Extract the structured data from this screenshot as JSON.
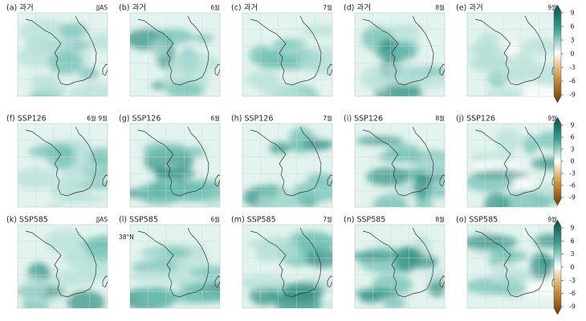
{
  "panels": [
    {
      "label": "(a) 과거",
      "period": "JJAS"
    },
    {
      "label": "(b) 과거",
      "period": "6월"
    },
    {
      "label": "(c) 과거",
      "period": "7월"
    },
    {
      "label": "(d) 과거",
      "period": "8월"
    },
    {
      "label": "(e) 과거",
      "period": "9월"
    },
    {
      "label": "(f) SSP126",
      "period": "6월 9월"
    },
    {
      "label": "(g) SSP126",
      "period": "6월"
    },
    {
      "label": "(h) SSP126",
      "period": "7월"
    },
    {
      "label": "(i) SSP126",
      "period": "8월"
    },
    {
      "label": "(j) SSP126",
      "period": "9월"
    },
    {
      "label": "(k) SSP585",
      "period": "JJAS"
    },
    {
      "label": "(l) SSP585",
      "period": "6월",
      "note": "38°N"
    },
    {
      "label": "(m) SSP585",
      "period": "7월"
    },
    {
      "label": "(n) SSP585",
      "period": "8월"
    },
    {
      "label": "(o) SSP585",
      "period": "9월"
    }
  ],
  "colorbars": [
    {
      "ticks": [
        9,
        6,
        3,
        0,
        -3,
        -6,
        -9
      ]
    },
    {
      "ticks": [
        9,
        6,
        3,
        0,
        -3,
        -6,
        -9
      ]
    },
    {
      "ticks": [
        9,
        6,
        3,
        0,
        -3,
        -6,
        -9
      ]
    }
  ]
}
